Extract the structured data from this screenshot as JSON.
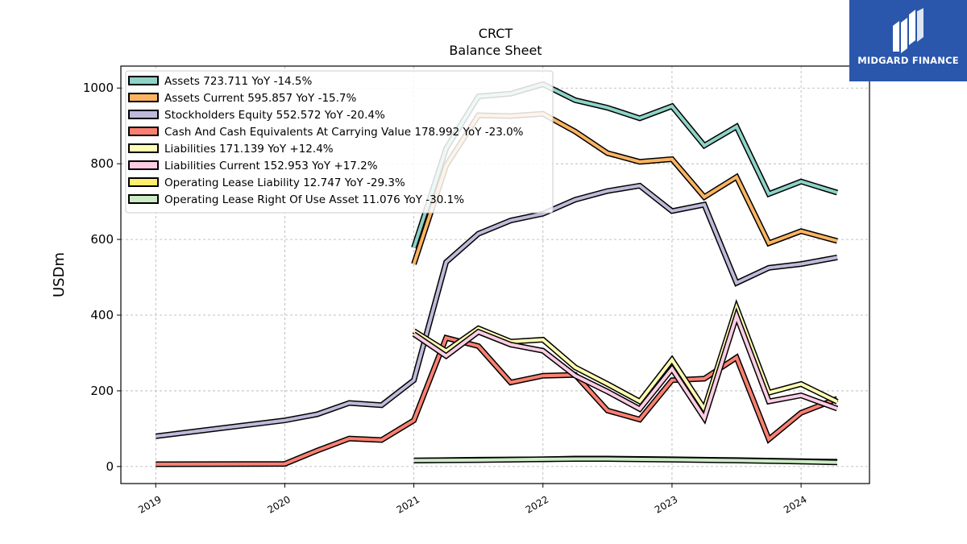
{
  "chart_data": {
    "type": "line",
    "title": "CRCT",
    "subtitle": "Balance  Sheet",
    "ylabel": "USDm",
    "xlabel": "",
    "ylim": [
      -45,
      1058
    ],
    "xlim": [
      2018.73,
      2024.53
    ],
    "yticks": [
      0,
      200,
      400,
      600,
      800,
      1000
    ],
    "xticks": [
      2019,
      2020,
      2021,
      2022,
      2023,
      2024
    ],
    "xtick_labels": [
      "2019",
      "2020",
      "2021",
      "2022",
      "2023",
      "2024"
    ],
    "grid": true,
    "legend_position": "top-left",
    "series": [
      {
        "name": "Assets",
        "legend": "Assets  723.711 YoY -14.5%",
        "color": "#8dd3c7",
        "x": [
          2021.0,
          2021.25,
          2021.5,
          2021.75,
          2022.0,
          2022.25,
          2022.5,
          2022.75,
          2023.0,
          2023.25,
          2023.5,
          2023.75,
          2024.0,
          2024.28
        ],
        "y": [
          578,
          840,
          978,
          985,
          1010,
          968,
          948,
          920,
          952,
          848,
          898,
          720,
          753,
          723.711
        ]
      },
      {
        "name": "Assets Current",
        "legend": "Assets Current  595.857 YoY -15.7%",
        "color": "#fdb462",
        "x": [
          2021.0,
          2021.25,
          2021.5,
          2021.75,
          2022.0,
          2022.25,
          2022.5,
          2022.75,
          2023.0,
          2023.25,
          2023.5,
          2023.75,
          2024.0,
          2024.28
        ],
        "y": [
          535,
          795,
          928,
          926,
          932,
          885,
          828,
          805,
          812,
          712,
          765,
          590,
          622,
          595.857
        ]
      },
      {
        "name": "Stockholders Equity",
        "legend": "Stockholders Equity  552.572 YoY -20.4%",
        "color": "#bebada",
        "x": [
          2019.0,
          2020.0,
          2020.25,
          2020.5,
          2020.75,
          2021.0,
          2021.25,
          2021.5,
          2021.75,
          2022.0,
          2022.25,
          2022.5,
          2022.75,
          2023.0,
          2023.25,
          2023.5,
          2023.75,
          2024.0,
          2024.28
        ],
        "y": [
          80,
          122,
          138,
          168,
          162,
          228,
          540,
          615,
          650,
          668,
          705,
          728,
          742,
          675,
          692,
          485,
          525,
          535,
          552.572
        ]
      },
      {
        "name": "Cash And Cash Equivalents At Carrying Value",
        "legend": "Cash And Cash Equivalents At Carrying Value  178.992 YoY -23.0%",
        "color": "#fb8072",
        "x": [
          2019.0,
          2020.0,
          2020.25,
          2020.5,
          2020.75,
          2021.0,
          2021.25,
          2021.5,
          2021.75,
          2022.0,
          2022.25,
          2022.5,
          2022.75,
          2023.0,
          2023.25,
          2023.5,
          2023.75,
          2024.0,
          2024.28
        ],
        "y": [
          6,
          7,
          42,
          74,
          70,
          122,
          340,
          318,
          222,
          240,
          242,
          148,
          124,
          228,
          232,
          288,
          72,
          142,
          178.992
        ]
      },
      {
        "name": "Liabilities",
        "legend": "Liabilities  171.139 YoY +12.4%",
        "color": "#ffffb3",
        "x": [
          2021.0,
          2021.25,
          2021.5,
          2021.75,
          2022.0,
          2022.25,
          2022.5,
          2022.75,
          2023.0,
          2023.25,
          2023.5,
          2023.75,
          2024.0,
          2024.28
        ],
        "y": [
          358,
          305,
          365,
          330,
          335,
          262,
          218,
          172,
          282,
          152,
          420,
          195,
          218,
          171.139
        ]
      },
      {
        "name": "Liabilities Current",
        "legend": "Liabilities Current  152.953 YoY +17.2%",
        "color": "#fccde5",
        "x": [
          2021.0,
          2021.25,
          2021.5,
          2021.75,
          2022.0,
          2022.25,
          2022.5,
          2022.75,
          2023.0,
          2023.25,
          2023.5,
          2023.75,
          2024.0,
          2024.28
        ],
        "y": [
          350,
          292,
          356,
          322,
          306,
          240,
          198,
          152,
          258,
          128,
          398,
          172,
          188,
          152.953
        ]
      },
      {
        "name": "Operating Lease Liability",
        "legend": "Operating Lease Liability  12.747 YoY -29.3%",
        "color": "#ffed6f",
        "x": [
          2021.0,
          2021.5,
          2022.0,
          2022.25,
          2022.5,
          2023.0,
          2023.5,
          2024.0,
          2024.28
        ],
        "y": [
          16,
          18,
          19,
          21,
          21,
          19,
          17,
          14,
          12.747
        ]
      },
      {
        "name": "Operating Lease Right Of Use Asset",
        "legend": "Operating Lease Right Of Use Asset  11.076 YoY -30.1%",
        "color": "#ccebc5",
        "x": [
          2021.0,
          2021.5,
          2022.0,
          2022.25,
          2022.5,
          2023.0,
          2023.5,
          2024.0,
          2024.28
        ],
        "y": [
          16,
          17,
          19,
          20,
          20,
          18,
          16,
          13,
          11.076
        ]
      }
    ]
  },
  "branding": {
    "logo_text": "MIDGARD FINANCE",
    "logo_color": "#2a56ac"
  }
}
